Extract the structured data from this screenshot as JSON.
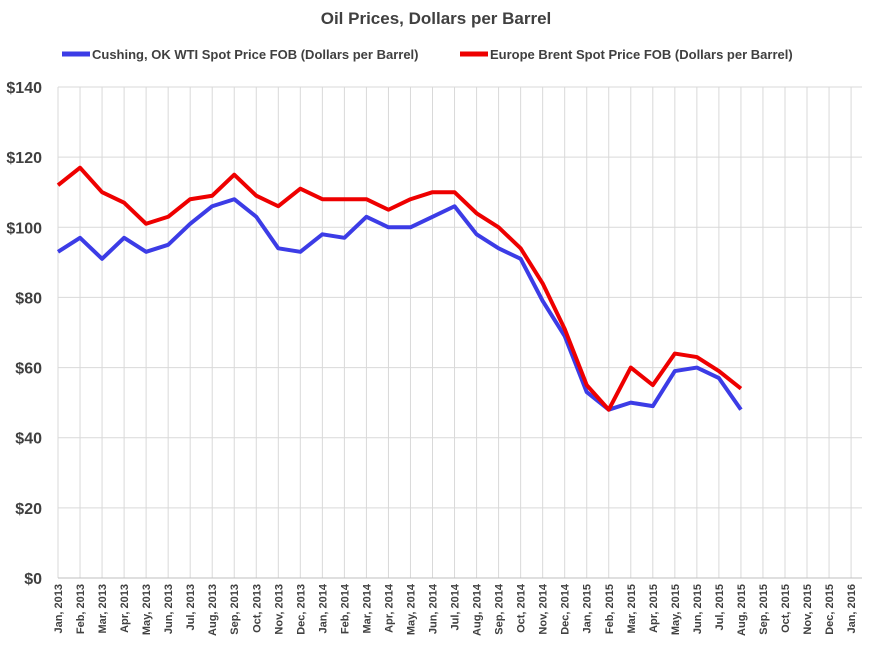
{
  "chart_data": {
    "type": "line",
    "title": "Oil Prices, Dollars per Barrel",
    "categories": [
      "Jan, 2013",
      "Feb, 2013",
      "Mar, 2013",
      "Apr, 2013",
      "May, 2013",
      "Jun, 2013",
      "Jul, 2013",
      "Aug, 2013",
      "Sep, 2013",
      "Oct, 2013",
      "Nov, 2013",
      "Dec, 2013",
      "Jan, 2014",
      "Feb, 2014",
      "Mar, 2014",
      "Apr, 2014",
      "May, 2014",
      "Jun, 2014",
      "Jul, 2014",
      "Aug, 2014",
      "Sep, 2014",
      "Oct, 2014",
      "Nov, 2014",
      "Dec, 2014",
      "Jan, 2015",
      "Feb, 2015",
      "Mar, 2015",
      "Apr, 2015",
      "May, 2015",
      "Jun, 2015",
      "Jul, 2015",
      "Aug, 2015",
      "Sep, 2015",
      "Oct, 2015",
      "Nov, 2015",
      "Dec, 2015",
      "Jan, 2016"
    ],
    "series": [
      {
        "name": "Cushing, OK WTI Spot Price FOB (Dollars per Barrel)",
        "color": "#3c3ce6",
        "values": [
          93,
          97,
          91,
          97,
          93,
          95,
          101,
          106,
          108,
          103,
          94,
          93,
          98,
          97,
          103,
          100,
          100,
          103,
          106,
          98,
          94,
          91,
          79,
          69,
          53,
          48,
          50,
          49,
          59,
          60,
          57,
          48,
          null,
          null,
          null,
          null,
          null
        ]
      },
      {
        "name": "Europe Brent Spot Price FOB (Dollars per Barrel)",
        "color": "#ee0000",
        "values": [
          112,
          117,
          110,
          107,
          101,
          103,
          108,
          109,
          115,
          109,
          106,
          111,
          108,
          108,
          108,
          105,
          108,
          110,
          110,
          104,
          100,
          94,
          84,
          71,
          55,
          48,
          60,
          55,
          64,
          63,
          59,
          54,
          null,
          null,
          null,
          null,
          null
        ]
      }
    ],
    "ylim": [
      0,
      140
    ],
    "yticks": [
      {
        "value": 0,
        "label": "$0"
      },
      {
        "value": 20,
        "label": "$20"
      },
      {
        "value": 40,
        "label": "$40"
      },
      {
        "value": 60,
        "label": "$60"
      },
      {
        "value": 80,
        "label": "$80"
      },
      {
        "value": 100,
        "label": "$100"
      },
      {
        "value": 120,
        "label": "$120"
      },
      {
        "value": 140,
        "label": "$140"
      }
    ],
    "grid": true
  }
}
